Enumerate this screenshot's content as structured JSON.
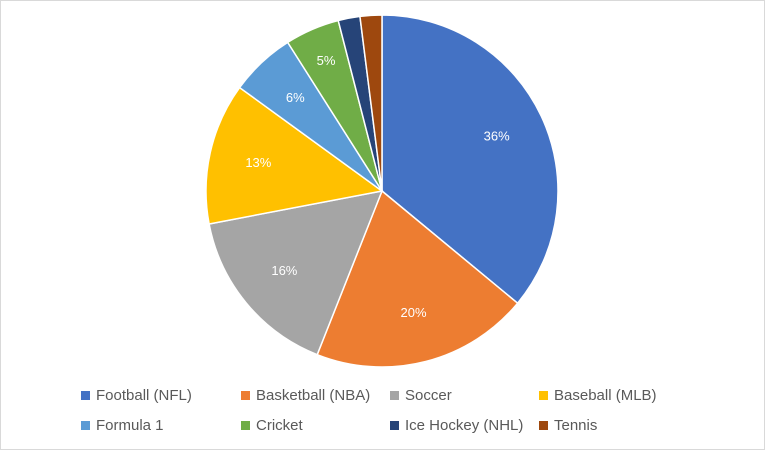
{
  "chart_data": {
    "type": "pie",
    "title": "",
    "slices": [
      {
        "name": "Football (NFL)",
        "value": 36,
        "label": "36%",
        "color": "#4472C4"
      },
      {
        "name": "Basketball (NBA)",
        "value": 20,
        "label": "20%",
        "color": "#ED7D31"
      },
      {
        "name": "Soccer",
        "value": 16,
        "label": "16%",
        "color": "#A5A5A5"
      },
      {
        "name": "Baseball (MLB)",
        "value": 13,
        "label": "13%",
        "color": "#FFC000"
      },
      {
        "name": "Formula 1",
        "value": 6,
        "label": "6%",
        "color": "#5B9BD5"
      },
      {
        "name": "Cricket",
        "value": 5,
        "label": "5%",
        "color": "#70AD47"
      },
      {
        "name": "Ice Hockey (NHL)",
        "value": 2,
        "label": "",
        "color": "#264478"
      },
      {
        "name": "Tennis",
        "value": 2,
        "label": "",
        "color": "#9E480E"
      }
    ],
    "legend_position": "bottom"
  }
}
